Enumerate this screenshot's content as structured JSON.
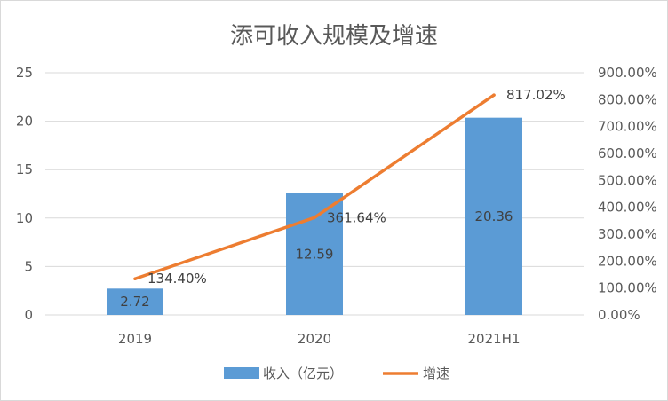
{
  "chart_data": {
    "type": "bar",
    "title": "添可收入规模及增速",
    "categories": [
      "2019",
      "2020",
      "2021H1"
    ],
    "series": [
      {
        "name": "收入（亿元）",
        "type": "bar",
        "axis": "left",
        "values": [
          2.72,
          12.59,
          20.36
        ],
        "labels": [
          "2.72",
          "12.59",
          "20.36"
        ],
        "color": "#5b9bd5"
      },
      {
        "name": "增速",
        "type": "line",
        "axis": "right",
        "values": [
          134.4,
          361.64,
          817.02
        ],
        "labels": [
          "134.40%",
          "361.64%",
          "817.02%"
        ],
        "color": "#ed7d31"
      }
    ],
    "y_left": {
      "ylim": [
        0,
        25
      ],
      "ticks": [
        "0",
        "5",
        "10",
        "15",
        "20",
        "25"
      ]
    },
    "y_right": {
      "ylim": [
        0,
        900
      ],
      "ticks": [
        "0.00%",
        "100.00%",
        "200.00%",
        "300.00%",
        "400.00%",
        "500.00%",
        "600.00%",
        "700.00%",
        "800.00%",
        "900.00%"
      ]
    },
    "grid": true,
    "legend": "bottom",
    "colors": {
      "grid": "#d9d9d9",
      "text": "#595959"
    }
  }
}
